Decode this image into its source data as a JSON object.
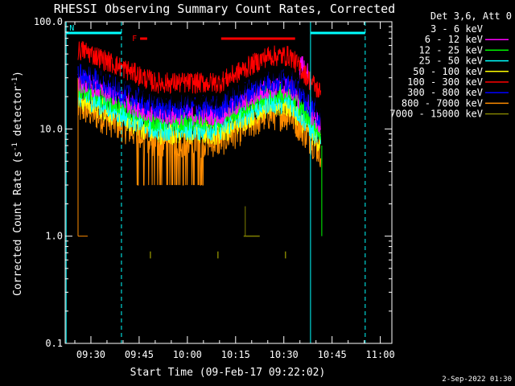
{
  "chart_data": {
    "type": "line",
    "title": "RHESSI Observing Summary Count Rates, Corrected",
    "xlabel": "Start Time (09-Feb-17 09:22:02)",
    "ylabel_main": "Corrected Count Rate (s",
    "ylabel_sup1": "-1",
    "ylabel_mid": " detector",
    "ylabel_sup2": "-1",
    "ylabel_end": ")",
    "y_scale": "log",
    "ylim": [
      0.1,
      100.0
    ],
    "y_ticks": [
      {
        "value": 0.1,
        "label": "0.1"
      },
      {
        "value": 1.0,
        "label": "1.0"
      },
      {
        "value": 10.0,
        "label": "10.0"
      },
      {
        "value": 100.0,
        "label": "100.0"
      }
    ],
    "xlim_minutes": [
      562.0,
      663.6
    ],
    "x_ticks": [
      {
        "minute": 570,
        "label": "09:30"
      },
      {
        "minute": 585,
        "label": "09:45"
      },
      {
        "minute": 600,
        "label": "10:00"
      },
      {
        "minute": 615,
        "label": "10:15"
      },
      {
        "minute": 630,
        "label": "10:30"
      },
      {
        "minute": 645,
        "label": "10:45"
      },
      {
        "minute": 660,
        "label": "11:00"
      }
    ],
    "legend_title": "Det 3,6, Att 0",
    "legend_placement": "right",
    "series": [
      {
        "name": "3 - 6 keV",
        "color": "#000000",
        "base": 1.05,
        "noise": 0.12
      },
      {
        "name": "6 - 12 keV",
        "color": "#ff00ff",
        "base": 0.88,
        "noise": 0.1
      },
      {
        "name": "12 - 25 keV",
        "color": "#00ff00",
        "base": 0.82,
        "noise": 0.1
      },
      {
        "name": "25 - 50 keV",
        "color": "#00ffff",
        "base": 0.76,
        "noise": 0.12
      },
      {
        "name": "50 - 100 keV",
        "color": "#ffff00",
        "base": 0.72,
        "noise": 0.12
      },
      {
        "name": "100 - 300 keV",
        "color": "#ff0000",
        "base": 1.18,
        "noise": 0.1
      },
      {
        "name": "300 - 800 keV",
        "color": "#0000ff",
        "base": 0.95,
        "noise": 0.12
      },
      {
        "name": "800 - 7000 keV",
        "color": "#ff8c00",
        "base": 0.64,
        "noise": 0.16
      },
      {
        "name": "7000 - 15000 keV",
        "color": "#808000",
        "base": 0.0,
        "noise": 0.0
      }
    ],
    "flags": [
      {
        "label": "F",
        "color": "#ff0000",
        "segments": [
          [
            585.3,
            587.5
          ],
          [
            610.5,
            633.5
          ]
        ]
      },
      {
        "label": "N",
        "color": "#00ffff",
        "segments": [
          [
            562.3,
            579.5
          ],
          [
            638.3,
            655.3
          ]
        ]
      }
    ],
    "night_lines_solid": [
      562.3,
      638.3
    ],
    "night_lines_dashed": [
      579.5,
      655.3
    ],
    "data_start_minute": 566.0,
    "data_end_minute": 641.5,
    "footer_date": "2-Sep-2022 01:30"
  }
}
